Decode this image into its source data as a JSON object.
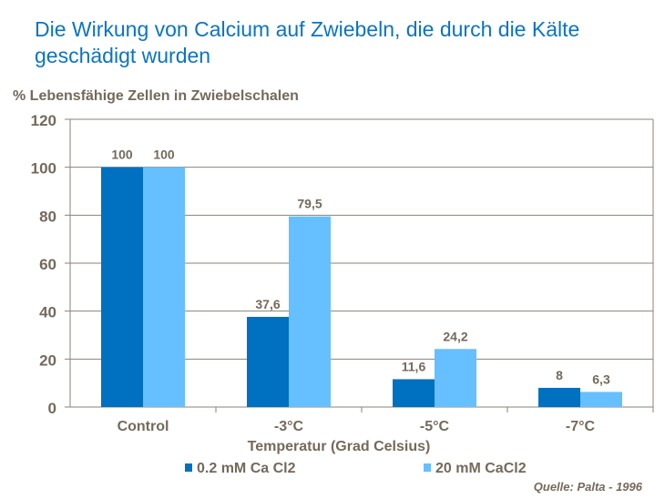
{
  "chart_data": {
    "type": "bar",
    "title": "Die Wirkung von Calcium auf Zwiebeln, die durch die Kälte geschädigt wurden",
    "ylabel": "% Lebensfähige Zellen in Zwiebelschalen",
    "xlabel": "Temperatur (Grad Celsius)",
    "categories": [
      "Control",
      "-3°C",
      "-5°C",
      "-7°C"
    ],
    "series": [
      {
        "name": "0.2 mM Ca Cl2",
        "values": [
          100,
          37.6,
          11.6,
          8
        ],
        "labels": [
          "100",
          "37,6",
          "11,6",
          "8"
        ],
        "color": "#0070c0"
      },
      {
        "name": "20 mM CaCl2",
        "values": [
          100,
          79.5,
          24.2,
          6.3
        ],
        "labels": [
          "100",
          "79,5",
          "24,2",
          "6,3"
        ],
        "color": "#66bfff"
      }
    ],
    "ylim": [
      0,
      120
    ],
    "yticks": [
      0,
      20,
      40,
      60,
      80,
      100,
      120
    ],
    "grid": true,
    "legend": "bottom",
    "source": "Quelle: Palta - 1996"
  }
}
